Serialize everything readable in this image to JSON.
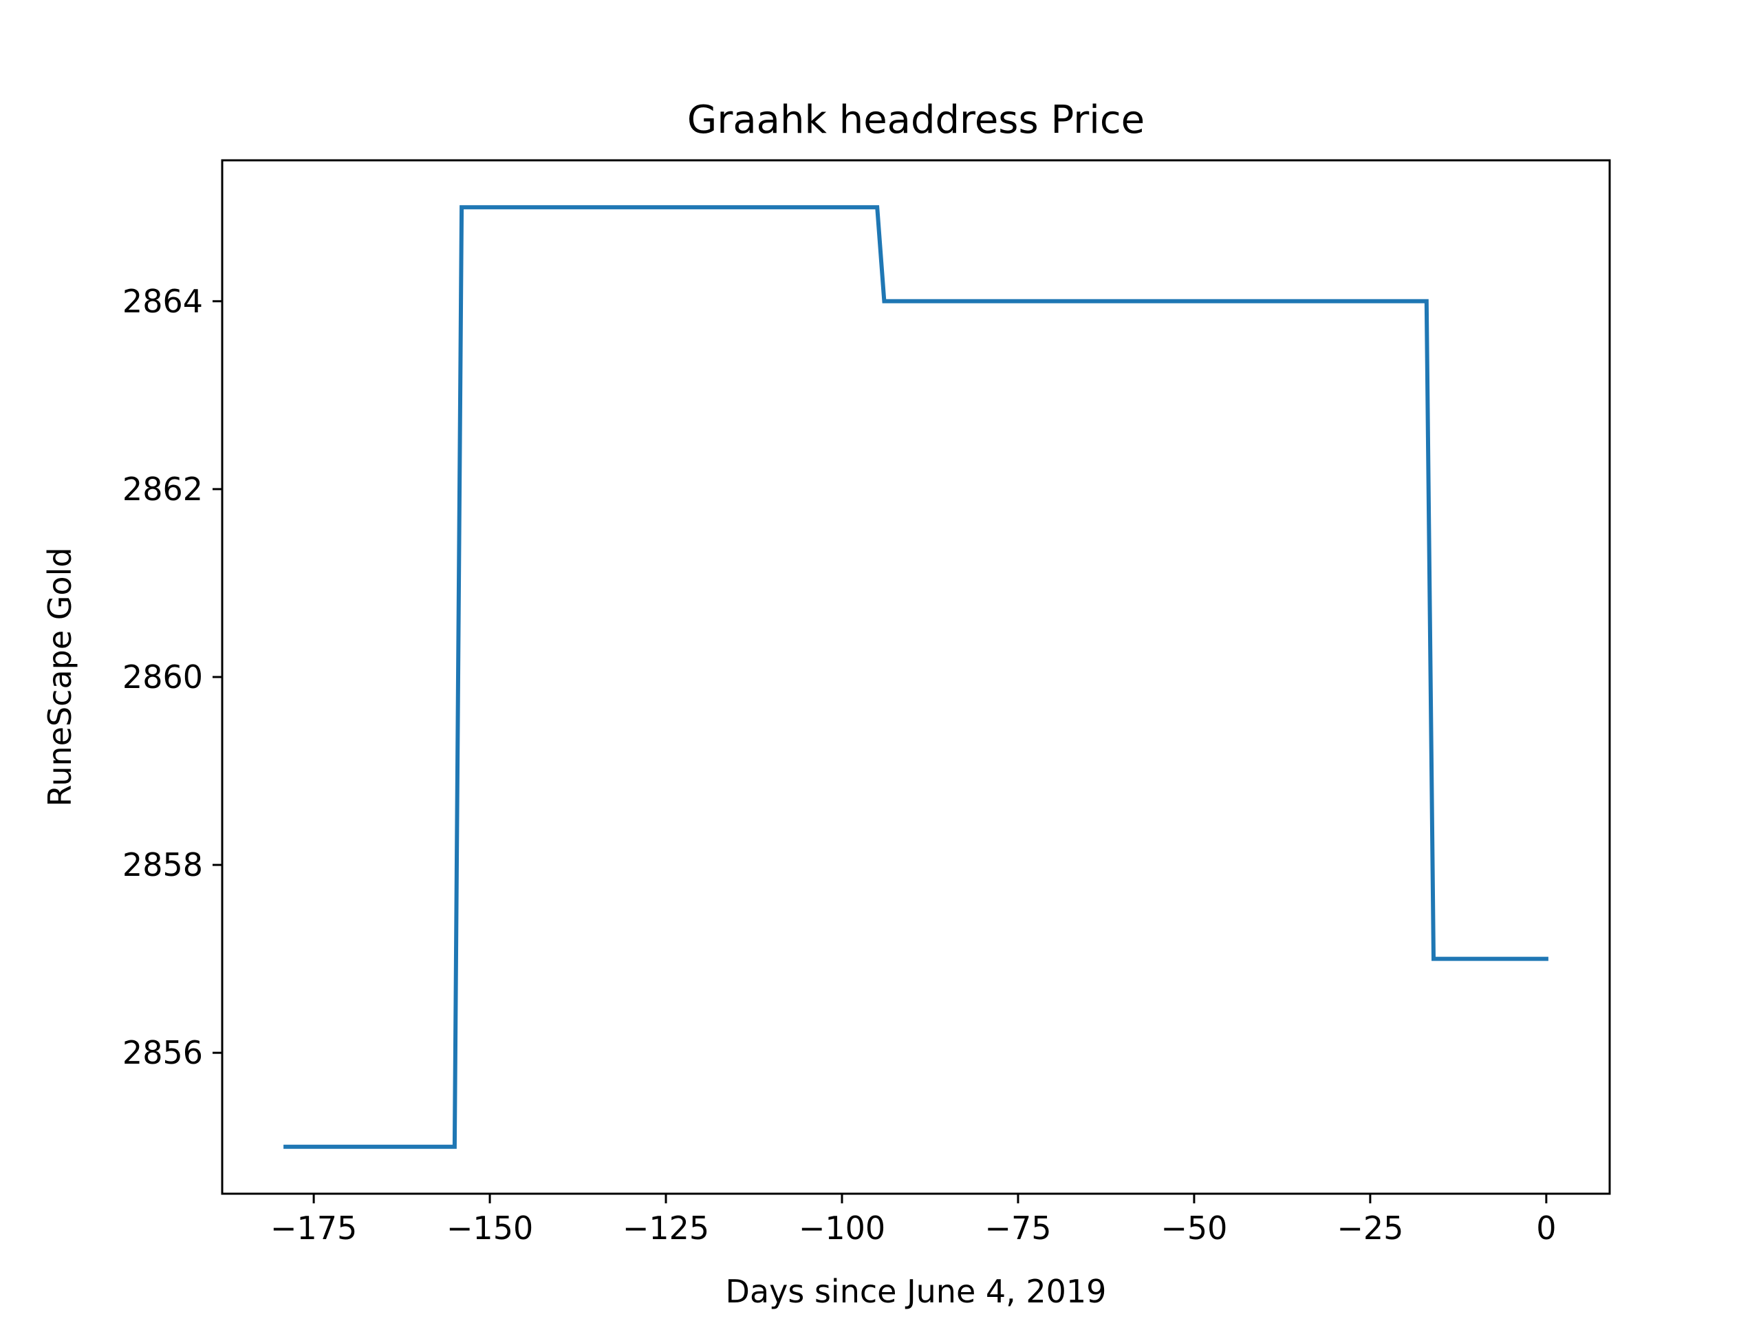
{
  "chart_data": {
    "type": "line",
    "title": "Graahk headdress Price",
    "xlabel": "Days since June 4, 2019",
    "ylabel": "RuneScape Gold",
    "xlim": [
      -188,
      9
    ],
    "ylim": [
      2854.5,
      2865.5
    ],
    "xticks": [
      -175,
      -150,
      -125,
      -100,
      -75,
      -50,
      -25,
      0
    ],
    "xtick_labels": [
      "−175",
      "−150",
      "−125",
      "−100",
      "−75",
      "−50",
      "−25",
      "0"
    ],
    "yticks": [
      2856,
      2858,
      2860,
      2862,
      2864
    ],
    "ytick_labels": [
      "2856",
      "2858",
      "2860",
      "2862",
      "2864"
    ],
    "grid": false,
    "series": [
      {
        "color": "#1f77b4",
        "x": [
          -179,
          -155,
          -154,
          -95,
          -94,
          -17,
          -16,
          0
        ],
        "y": [
          2855,
          2855,
          2865,
          2865,
          2864,
          2864,
          2857,
          2857
        ]
      }
    ]
  }
}
